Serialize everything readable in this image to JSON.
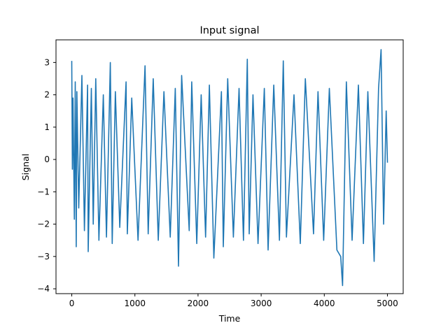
{
  "chart_data": {
    "type": "line",
    "title": "Input signal",
    "xlabel": "Time",
    "ylabel": "Signal",
    "xlim": [
      -250,
      5250
    ],
    "ylim": [
      -4.15,
      3.7
    ],
    "xticks": [
      0,
      1000,
      2000,
      3000,
      4000,
      5000
    ],
    "xtick_labels": [
      "0",
      "1000",
      "2000",
      "3000",
      "4000",
      "5000"
    ],
    "yticks": [
      -4,
      -3,
      -2,
      -1,
      0,
      1,
      2,
      3
    ],
    "ytick_labels": [
      "−4",
      "−3",
      "−2",
      "−1",
      "0",
      "1",
      "2",
      "3"
    ],
    "grid": false,
    "legend": "none",
    "series": [
      {
        "color": "#1f77b4",
        "x": [
          0,
          10,
          20,
          40,
          55,
          70,
          80,
          110,
          160,
          200,
          250,
          260,
          310,
          340,
          380,
          430,
          500,
          550,
          610,
          640,
          690,
          760,
          860,
          880,
          950,
          1050,
          1160,
          1210,
          1290,
          1370,
          1460,
          1560,
          1640,
          1690,
          1740,
          1860,
          1900,
          1980,
          2050,
          2120,
          2180,
          2250,
          2370,
          2400,
          2470,
          2560,
          2650,
          2720,
          2780,
          2810,
          2870,
          2950,
          3050,
          3110,
          3200,
          3290,
          3350,
          3400,
          3520,
          3620,
          3700,
          3830,
          3900,
          3990,
          4080,
          4200,
          4260,
          4290,
          4350,
          4440,
          4540,
          4620,
          4690,
          4790,
          4860,
          4900,
          4940,
          4980,
          5000
        ],
        "values": [
          3.05,
          -0.3,
          1.9,
          -1.85,
          2.4,
          -2.7,
          2.1,
          -1.5,
          2.6,
          -2.2,
          2.3,
          -2.85,
          2.2,
          -2.0,
          2.5,
          -2.5,
          2.0,
          -2.4,
          3.0,
          -2.6,
          2.1,
          -2.1,
          2.4,
          -2.3,
          1.9,
          -2.5,
          2.9,
          -2.3,
          2.5,
          -2.5,
          2.1,
          -2.4,
          2.2,
          -3.3,
          2.6,
          -2.2,
          2.4,
          -2.6,
          2.0,
          -2.4,
          2.3,
          -3.05,
          2.1,
          -2.7,
          2.5,
          -2.4,
          2.2,
          -2.5,
          3.1,
          -2.3,
          2.0,
          -2.6,
          2.2,
          -2.8,
          2.3,
          -2.5,
          3.05,
          -2.4,
          2.0,
          -2.6,
          2.5,
          -2.3,
          2.1,
          -2.5,
          2.2,
          -2.8,
          -3.0,
          -3.9,
          2.4,
          -2.5,
          2.3,
          -2.6,
          2.1,
          -3.15,
          2.2,
          3.4,
          -2.0,
          1.5,
          -0.1
        ]
      }
    ]
  }
}
